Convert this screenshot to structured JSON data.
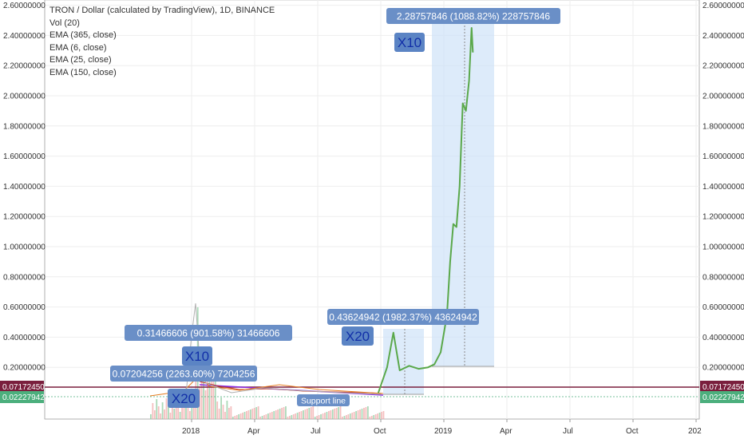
{
  "legend": {
    "title": "TRON / Dollar (calculated by TradingView), 1D, BINANCE",
    "indicators": [
      "Vol (20)",
      "EMA (365, close)",
      "EMA (6, close)",
      "EMA (25, close)",
      "EMA (150, close)"
    ]
  },
  "colors": {
    "projection_line": "#5aa84a",
    "range_fill": "#cfe3f8",
    "label_bg": "#6a8fc7",
    "x_label_bg": "#5b84c4",
    "x_label_text": "#1230a8",
    "price_tag_red": "#7a1f3d",
    "price_tag_green": "#4caf7d",
    "support_line": "#8a2be2",
    "volume_up": "#8fcca0",
    "volume_down": "#f0a9a9"
  },
  "price_tags": [
    {
      "value": "0.07172450",
      "color": "red"
    },
    {
      "value": "0.02227942",
      "color": "green"
    }
  ],
  "annotations": {
    "range_top": "2.28757846 (1088.82%) 228757846",
    "range_mid": "0.43624942 (1982.37%) 43624942",
    "range_early_top": "0.31466606 (901.58%) 31466606",
    "range_early_low": "0.07204256 (2263.60%) 7204256",
    "x_labels": [
      "X10",
      "X20",
      "X10",
      "X20"
    ],
    "support_label": "Support line"
  },
  "chart_data": {
    "type": "line",
    "title": "TRON / Dollar (calculated by TradingView), 1D, BINANCE",
    "ylim": [
      0,
      2.6
    ],
    "y_ticks": [
      "0.20000000",
      "0.40000000",
      "0.60000000",
      "0.80000000",
      "1.00000000",
      "1.20000000",
      "1.40000000",
      "1.60000000",
      "1.80000000",
      "2.00000000",
      "2.20000000",
      "2.40000000",
      "2.60000000"
    ],
    "y_tick_values": [
      0.2,
      0.4,
      0.6,
      0.8,
      1.0,
      1.2,
      1.4,
      1.6,
      1.8,
      2.0,
      2.2,
      2.4,
      2.6
    ],
    "x_ticks": [
      "2018",
      "Apr",
      "Jul",
      "Oct",
      "2019",
      "Apr",
      "Jul",
      "Oct",
      "202"
    ],
    "x_tick_index": [
      0,
      1,
      2,
      3,
      4,
      5,
      6,
      7,
      8
    ],
    "grid": true,
    "series": [
      {
        "values_x": [
          2.96,
          3.1,
          3.2,
          3.3,
          3.45,
          3.6,
          3.75,
          3.85,
          3.95,
          4.05,
          4.1,
          4.15,
          4.2,
          4.25,
          4.3,
          4.35,
          4.4,
          4.44,
          4.46
        ],
        "values_y": [
          0.03,
          0.2,
          0.43,
          0.18,
          0.21,
          0.19,
          0.2,
          0.22,
          0.3,
          0.55,
          0.9,
          1.15,
          1.13,
          1.4,
          1.95,
          1.9,
          2.1,
          2.45,
          2.287
        ]
      }
    ]
  }
}
